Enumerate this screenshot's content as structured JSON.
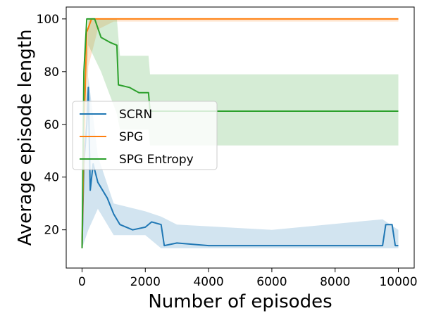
{
  "chart_data": {
    "type": "line",
    "title": "",
    "xlabel": "Number of episodes",
    "ylabel": "Average episode length",
    "xlim": [
      -500,
      10500
    ],
    "ylim": [
      5.5,
      104.5
    ],
    "x_ticks": [
      0,
      2000,
      4000,
      6000,
      8000,
      10000
    ],
    "y_ticks": [
      20,
      40,
      60,
      80,
      100
    ],
    "grid": false,
    "legend": "center-left",
    "series": [
      {
        "name": "SCRN",
        "color": "#1f77b4",
        "points": [
          [
            0,
            13
          ],
          [
            60,
            45
          ],
          [
            150,
            60
          ],
          [
            200,
            74
          ],
          [
            260,
            35
          ],
          [
            350,
            45
          ],
          [
            500,
            38
          ],
          [
            800,
            32
          ],
          [
            1000,
            26
          ],
          [
            1200,
            22
          ],
          [
            1600,
            20
          ],
          [
            2000,
            21
          ],
          [
            2200,
            23
          ],
          [
            2500,
            22
          ],
          [
            2600,
            14
          ],
          [
            3000,
            15
          ],
          [
            4000,
            14
          ],
          [
            5000,
            14
          ],
          [
            6000,
            14
          ],
          [
            7000,
            14
          ],
          [
            8000,
            14
          ],
          [
            9000,
            14
          ],
          [
            9500,
            14
          ],
          [
            9600,
            22
          ],
          [
            9800,
            22
          ],
          [
            9900,
            14
          ],
          [
            10000,
            14
          ]
        ],
        "band": [
          [
            0,
            13,
            13
          ],
          [
            200,
            20,
            78
          ],
          [
            500,
            28,
            48
          ],
          [
            1000,
            18,
            30
          ],
          [
            2000,
            18,
            27
          ],
          [
            2500,
            13,
            25
          ],
          [
            3000,
            13,
            22
          ],
          [
            6000,
            13,
            20
          ],
          [
            9500,
            13,
            24
          ],
          [
            10000,
            13,
            20
          ]
        ]
      },
      {
        "name": "SPG",
        "color": "#ff7f0e",
        "points": [
          [
            0,
            13
          ],
          [
            60,
            55
          ],
          [
            150,
            95
          ],
          [
            300,
            100
          ],
          [
            600,
            100
          ],
          [
            1000,
            100
          ],
          [
            2000,
            100
          ],
          [
            4000,
            100
          ],
          [
            6000,
            100
          ],
          [
            8000,
            100
          ],
          [
            10000,
            100
          ]
        ],
        "band": [
          [
            0,
            13,
            13
          ],
          [
            200,
            82,
            100
          ],
          [
            500,
            96,
            100
          ],
          [
            1000,
            99,
            100
          ],
          [
            10000,
            99,
            100
          ]
        ]
      },
      {
        "name": "SPG Entropy",
        "color": "#2ca02c",
        "points": [
          [
            0,
            13
          ],
          [
            60,
            80
          ],
          [
            150,
            100
          ],
          [
            400,
            100
          ],
          [
            600,
            93
          ],
          [
            900,
            91
          ],
          [
            1100,
            90
          ],
          [
            1150,
            75
          ],
          [
            1500,
            74
          ],
          [
            1800,
            72
          ],
          [
            2100,
            72
          ],
          [
            2150,
            65
          ],
          [
            3000,
            65
          ],
          [
            4000,
            65
          ],
          [
            6000,
            65
          ],
          [
            8000,
            65
          ],
          [
            10000,
            65
          ]
        ],
        "band": [
          [
            0,
            13,
            13
          ],
          [
            200,
            90,
            100
          ],
          [
            600,
            80,
            100
          ],
          [
            1100,
            64,
            100
          ],
          [
            1200,
            58,
            86
          ],
          [
            2100,
            58,
            86
          ],
          [
            2150,
            52,
            79
          ],
          [
            10000,
            52,
            79
          ]
        ]
      }
    ]
  }
}
